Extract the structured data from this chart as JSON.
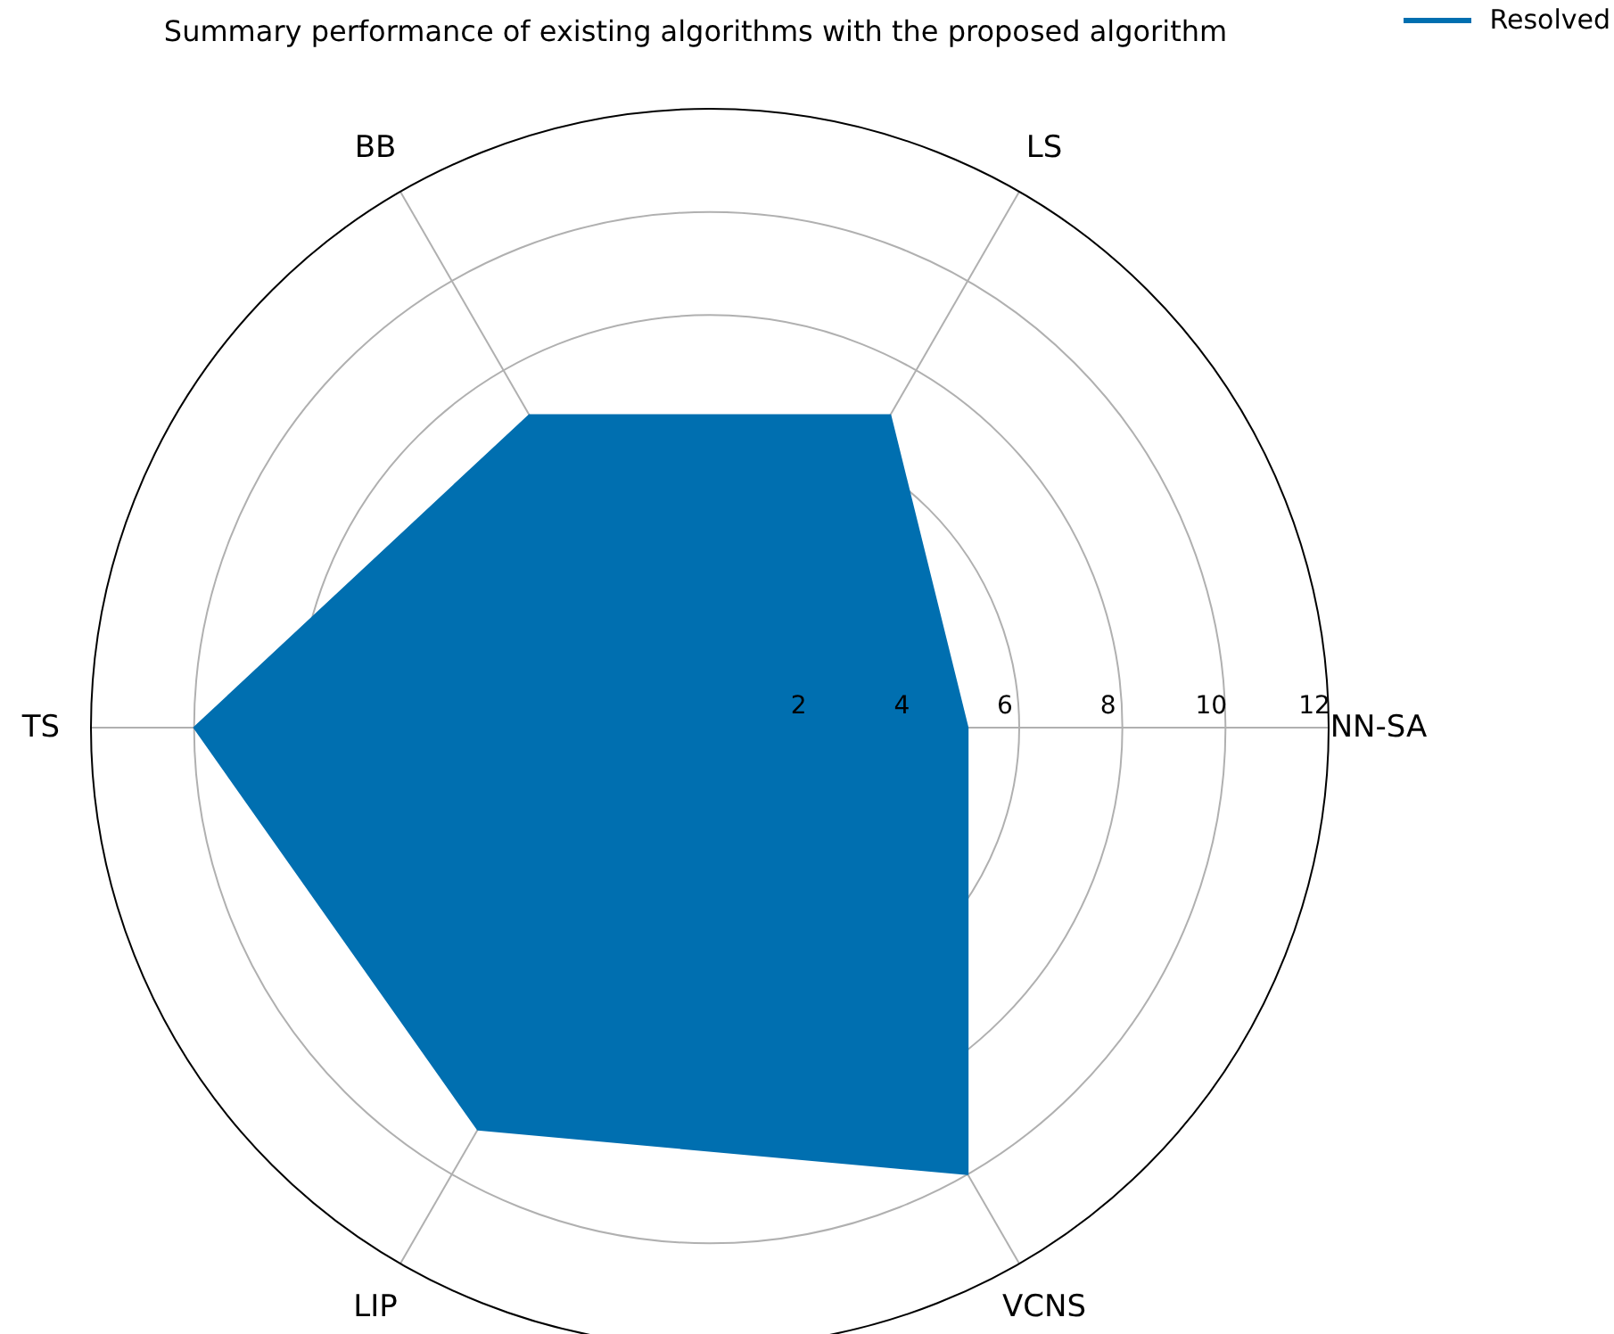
{
  "chart_data": {
    "type": "radar",
    "title": "Summary performance of existing algorithms with the proposed algorithm",
    "categories": [
      "LS",
      "NN-SA",
      "VCNS",
      "LIP",
      "TS",
      "BB"
    ],
    "series": [
      {
        "name": "Resolved",
        "color": "#006fb0",
        "values": [
          7,
          5,
          10,
          9,
          10,
          7
        ]
      }
    ],
    "ylim": [
      0,
      12
    ],
    "yticks": [
      2,
      4,
      6,
      8,
      10,
      12
    ],
    "grid": true,
    "legend": "top right"
  }
}
